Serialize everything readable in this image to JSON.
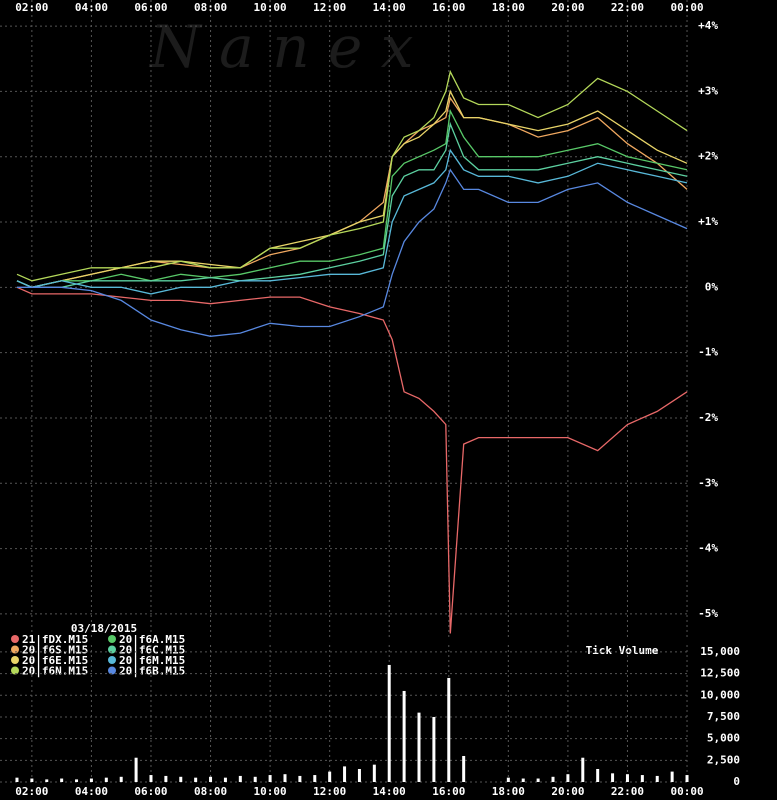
{
  "chart_data": [
    {
      "type": "line",
      "watermark": "N a n e x",
      "legend_title": "03/18/2015",
      "legend": "bottom-left",
      "grid": true,
      "xlim": [
        0.93,
        24.1
      ],
      "ylim": [
        -5.4,
        4.4
      ],
      "xticks": [
        {
          "value": 2,
          "label": "02:00"
        },
        {
          "value": 4,
          "label": "04:00"
        },
        {
          "value": 6,
          "label": "06:00"
        },
        {
          "value": 8,
          "label": "08:00"
        },
        {
          "value": 10,
          "label": "10:00"
        },
        {
          "value": 12,
          "label": "12:00"
        },
        {
          "value": 14,
          "label": "14:00"
        },
        {
          "value": 16,
          "label": "16:00"
        },
        {
          "value": 18,
          "label": "18:00"
        },
        {
          "value": 20,
          "label": "20:00"
        },
        {
          "value": 22,
          "label": "22:00"
        },
        {
          "value": 24,
          "label": "00:00"
        }
      ],
      "yticks": [
        {
          "value": 4,
          "label": "+4%"
        },
        {
          "value": 3,
          "label": "+3%"
        },
        {
          "value": 2,
          "label": "+2%"
        },
        {
          "value": 1,
          "label": "+1%"
        },
        {
          "value": 0,
          "label": "0%"
        },
        {
          "value": -1,
          "label": "-1%"
        },
        {
          "value": -2,
          "label": "-2%"
        },
        {
          "value": -3,
          "label": "-3%"
        },
        {
          "value": -4,
          "label": "-4%"
        },
        {
          "value": -5,
          "label": "-5%"
        }
      ],
      "x": [
        1.5,
        2,
        3,
        4,
        5,
        6,
        7,
        8,
        9,
        10,
        11,
        12,
        13,
        13.8,
        14.1,
        14.5,
        15,
        15.5,
        15.9,
        16.05,
        16.5,
        17,
        18,
        19,
        20,
        21,
        22,
        23,
        24
      ],
      "series": [
        {
          "name": "21|fDX.M15",
          "color": "#e86868",
          "values": [
            0,
            -0.1,
            -0.1,
            -0.1,
            -0.15,
            -0.2,
            -0.2,
            -0.25,
            -0.2,
            -0.15,
            -0.15,
            -0.3,
            -0.4,
            -0.5,
            -0.8,
            -1.6,
            -1.7,
            -1.9,
            -2.1,
            -5.3,
            -2.4,
            -2.3,
            -2.3,
            -2.3,
            -2.3,
            -2.5,
            -2.1,
            -1.9,
            -1.6
          ]
        },
        {
          "name": "20|f6S.M15",
          "color": "#f0a860",
          "values": [
            0.1,
            0,
            0.1,
            0.2,
            0.3,
            0.4,
            0.35,
            0.3,
            0.3,
            0.5,
            0.6,
            0.8,
            1.0,
            1.3,
            2.0,
            2.2,
            2.4,
            2.5,
            2.6,
            2.9,
            2.6,
            2.6,
            2.5,
            2.3,
            2.4,
            2.6,
            2.2,
            1.9,
            1.5
          ]
        },
        {
          "name": "20|f6E.M15",
          "color": "#e8d468",
          "values": [
            0.1,
            0,
            0.1,
            0.2,
            0.3,
            0.4,
            0.4,
            0.35,
            0.3,
            0.6,
            0.7,
            0.8,
            1.0,
            1.1,
            2.0,
            2.2,
            2.3,
            2.5,
            2.7,
            3.0,
            2.6,
            2.6,
            2.5,
            2.4,
            2.5,
            2.7,
            2.4,
            2.1,
            1.9
          ]
        },
        {
          "name": "20|f6N.M15",
          "color": "#b4d85a",
          "values": [
            0.2,
            0.1,
            0.2,
            0.3,
            0.3,
            0.3,
            0.4,
            0.3,
            0.3,
            0.6,
            0.6,
            0.8,
            0.9,
            1.0,
            2.0,
            2.3,
            2.4,
            2.6,
            3.0,
            3.3,
            2.9,
            2.8,
            2.8,
            2.6,
            2.8,
            3.2,
            3.0,
            2.7,
            2.4
          ]
        },
        {
          "name": "20|f6A.M15",
          "color": "#58c868",
          "values": [
            0.1,
            0,
            0.1,
            0.1,
            0.2,
            0.1,
            0.2,
            0.15,
            0.2,
            0.3,
            0.4,
            0.4,
            0.5,
            0.6,
            1.7,
            1.9,
            2.0,
            2.1,
            2.2,
            2.7,
            2.3,
            2.0,
            2.0,
            2.0,
            2.1,
            2.2,
            2.0,
            1.9,
            1.8
          ]
        },
        {
          "name": "20|f6C.M15",
          "color": "#5cd0a0",
          "values": [
            0.1,
            0,
            0,
            0.1,
            0.1,
            0.1,
            0.1,
            0.15,
            0.1,
            0.15,
            0.2,
            0.3,
            0.4,
            0.5,
            1.4,
            1.7,
            1.8,
            1.8,
            2.1,
            2.5,
            2.0,
            1.8,
            1.8,
            1.8,
            1.9,
            2.0,
            1.9,
            1.8,
            1.7
          ]
        },
        {
          "name": "20|f6M.M15",
          "color": "#58b8d8",
          "values": [
            0.1,
            0,
            0.1,
            0,
            0,
            -0.1,
            0,
            0,
            0.1,
            0.1,
            0.15,
            0.2,
            0.2,
            0.3,
            1.0,
            1.4,
            1.5,
            1.6,
            1.8,
            2.1,
            1.8,
            1.7,
            1.7,
            1.6,
            1.7,
            1.9,
            1.8,
            1.7,
            1.6
          ]
        },
        {
          "name": "20|f6B.M15",
          "color": "#5888e0",
          "values": [
            0,
            0,
            0,
            -0.05,
            -0.2,
            -0.5,
            -0.65,
            -0.75,
            -0.7,
            -0.55,
            -0.6,
            -0.6,
            -0.45,
            -0.3,
            0.2,
            0.7,
            1.0,
            1.2,
            1.6,
            1.8,
            1.5,
            1.5,
            1.3,
            1.3,
            1.5,
            1.6,
            1.3,
            1.1,
            0.9
          ]
        }
      ]
    },
    {
      "type": "bar",
      "title": "Tick Volume",
      "color": "#ffffff",
      "grid": true,
      "xlim": [
        0.93,
        24.1
      ],
      "ylim": [
        0,
        15800
      ],
      "xticks": [
        {
          "value": 2,
          "label": "02:00"
        },
        {
          "value": 4,
          "label": "04:00"
        },
        {
          "value": 6,
          "label": "06:00"
        },
        {
          "value": 8,
          "label": "08:00"
        },
        {
          "value": 10,
          "label": "10:00"
        },
        {
          "value": 12,
          "label": "12:00"
        },
        {
          "value": 14,
          "label": "14:00"
        },
        {
          "value": 16,
          "label": "16:00"
        },
        {
          "value": 18,
          "label": "18:00"
        },
        {
          "value": 20,
          "label": "20:00"
        },
        {
          "value": 22,
          "label": "22:00"
        },
        {
          "value": 24,
          "label": "00:00"
        }
      ],
      "yticks": [
        {
          "value": 15000,
          "label": "15,000"
        },
        {
          "value": 12500,
          "label": "12,500"
        },
        {
          "value": 10000,
          "label": "10,000"
        },
        {
          "value": 7500,
          "label": "7,500"
        },
        {
          "value": 5000,
          "label": "5,000"
        },
        {
          "value": 2500,
          "label": "2,500"
        },
        0
      ],
      "x": [
        1.5,
        2,
        2.5,
        3,
        3.5,
        4,
        4.5,
        5,
        5.5,
        6,
        6.5,
        7,
        7.5,
        8,
        8.5,
        9,
        9.5,
        10,
        10.5,
        11,
        11.5,
        12,
        12.5,
        13,
        13.5,
        14,
        14.5,
        15,
        15.5,
        16,
        16.5,
        17,
        17.5,
        18,
        18.5,
        19,
        19.5,
        20,
        20.5,
        21,
        21.5,
        22,
        22.5,
        23,
        23.5,
        24
      ],
      "values": [
        500,
        400,
        300,
        400,
        300,
        400,
        500,
        600,
        2800,
        800,
        700,
        600,
        500,
        600,
        500,
        700,
        600,
        800,
        900,
        700,
        800,
        1200,
        1800,
        1500,
        2000,
        13500,
        10500,
        8000,
        7500,
        12000,
        3000,
        0,
        0,
        500,
        400,
        400,
        600,
        900,
        2800,
        1500,
        1000,
        900,
        800,
        700,
        1200,
        800
      ]
    }
  ]
}
